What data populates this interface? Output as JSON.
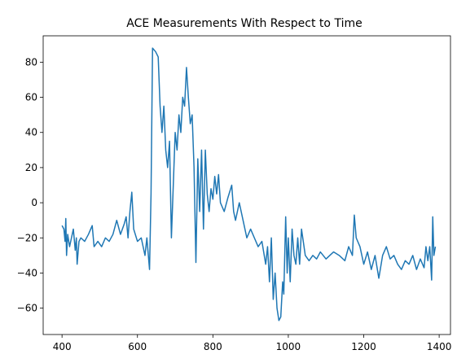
{
  "chart_data": {
    "type": "line",
    "title": "ACE Measurements With Respect to Time",
    "x": [
      400,
      405,
      408,
      410,
      412,
      415,
      420,
      425,
      430,
      435,
      438,
      440,
      445,
      450,
      460,
      470,
      480,
      485,
      495,
      505,
      515,
      525,
      535,
      545,
      555,
      565,
      570,
      575,
      580,
      585,
      590,
      600,
      610,
      620,
      625,
      632,
      636,
      640,
      648,
      655,
      660,
      665,
      670,
      675,
      680,
      685,
      690,
      695,
      700,
      705,
      710,
      715,
      720,
      725,
      730,
      735,
      740,
      745,
      750,
      755,
      760,
      765,
      770,
      775,
      780,
      785,
      790,
      795,
      800,
      805,
      810,
      815,
      820,
      830,
      840,
      850,
      855,
      860,
      870,
      880,
      890,
      900,
      910,
      920,
      930,
      940,
      945,
      950,
      955,
      960,
      965,
      970,
      975,
      980,
      985,
      988,
      993,
      997,
      1000,
      1005,
      1010,
      1015,
      1020,
      1025,
      1030,
      1035,
      1045,
      1055,
      1065,
      1075,
      1085,
      1100,
      1110,
      1120,
      1135,
      1150,
      1160,
      1170,
      1175,
      1180,
      1190,
      1200,
      1210,
      1220,
      1230,
      1240,
      1250,
      1260,
      1270,
      1280,
      1290,
      1300,
      1310,
      1320,
      1330,
      1340,
      1350,
      1360,
      1365,
      1370,
      1375,
      1380,
      1383,
      1386,
      1390
    ],
    "values": [
      -13,
      -15,
      -22,
      -9,
      -30,
      -18,
      -25,
      -20,
      -15,
      -27,
      -20,
      -35,
      -22,
      -20,
      -22,
      -18,
      -13,
      -25,
      -22,
      -25,
      -20,
      -22,
      -18,
      -10,
      -18,
      -12,
      -8,
      -20,
      -5,
      6,
      -15,
      -22,
      -20,
      -30,
      -20,
      -38,
      5,
      88,
      86,
      83,
      55,
      40,
      55,
      30,
      20,
      35,
      -20,
      10,
      40,
      30,
      50,
      40,
      60,
      55,
      77,
      60,
      45,
      50,
      20,
      -34,
      25,
      -5,
      30,
      -15,
      30,
      5,
      -5,
      8,
      2,
      15,
      5,
      16,
      0,
      -5,
      3,
      10,
      -5,
      -10,
      0,
      -10,
      -20,
      -15,
      -20,
      -25,
      -22,
      -35,
      -25,
      -45,
      -20,
      -55,
      -40,
      -60,
      -67,
      -65,
      -45,
      -52,
      -8,
      -40,
      -20,
      -45,
      -15,
      -30,
      -35,
      -20,
      -35,
      -15,
      -30,
      -33,
      -30,
      -32,
      -28,
      -32,
      -30,
      -28,
      -30,
      -33,
      -25,
      -30,
      -7,
      -20,
      -25,
      -35,
      -28,
      -38,
      -30,
      -43,
      -30,
      -25,
      -32,
      -30,
      -35,
      -38,
      -33,
      -35,
      -30,
      -38,
      -32,
      -37,
      -25,
      -33,
      -25,
      -44,
      -8,
      -30,
      -25
    ],
    "color": "#1f77b4",
    "xlim": [
      350,
      1430
    ],
    "xticks": [
      400,
      600,
      800,
      1000,
      1200,
      1400
    ],
    "ylim": [
      -75,
      95
    ],
    "yticks": [
      {
        "value": -60,
        "label": "−60"
      },
      {
        "value": -40,
        "label": "−40"
      },
      {
        "value": -20,
        "label": "−20"
      },
      0,
      20,
      40,
      60,
      80
    ]
  }
}
